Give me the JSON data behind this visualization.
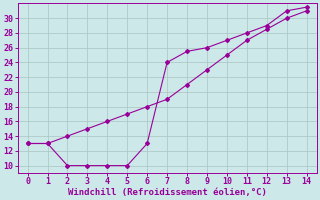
{
  "line1_x": [
    0,
    1,
    2,
    3,
    4,
    5,
    6,
    7,
    8,
    9,
    10,
    11,
    12,
    13,
    14
  ],
  "line1_y": [
    13,
    13,
    14,
    15,
    16,
    17,
    18,
    19,
    21,
    23,
    25,
    27,
    28.5,
    30,
    31
  ],
  "line2_x": [
    0,
    1,
    2,
    3,
    4,
    5,
    6,
    7,
    8,
    9,
    10,
    11,
    12,
    13,
    14
  ],
  "line2_y": [
    13,
    13,
    10,
    10,
    10,
    10,
    13,
    24,
    25.5,
    26,
    27,
    28,
    29,
    31,
    31.5
  ],
  "color": "#990099",
  "background_color": "#cce8e8",
  "grid_color": "#b0c8c8",
  "xlabel": "Windchill (Refroidissement éolien,°C)",
  "xlim": [
    -0.5,
    14.5
  ],
  "ylim": [
    9,
    32
  ],
  "xticks": [
    0,
    1,
    2,
    3,
    4,
    5,
    6,
    7,
    8,
    9,
    10,
    11,
    12,
    13,
    14
  ],
  "yticks": [
    10,
    12,
    14,
    16,
    18,
    20,
    22,
    24,
    26,
    28,
    30
  ],
  "xlabel_fontsize": 6.5,
  "tick_fontsize": 6,
  "marker": "D",
  "markersize": 2.0,
  "linewidth": 0.8
}
